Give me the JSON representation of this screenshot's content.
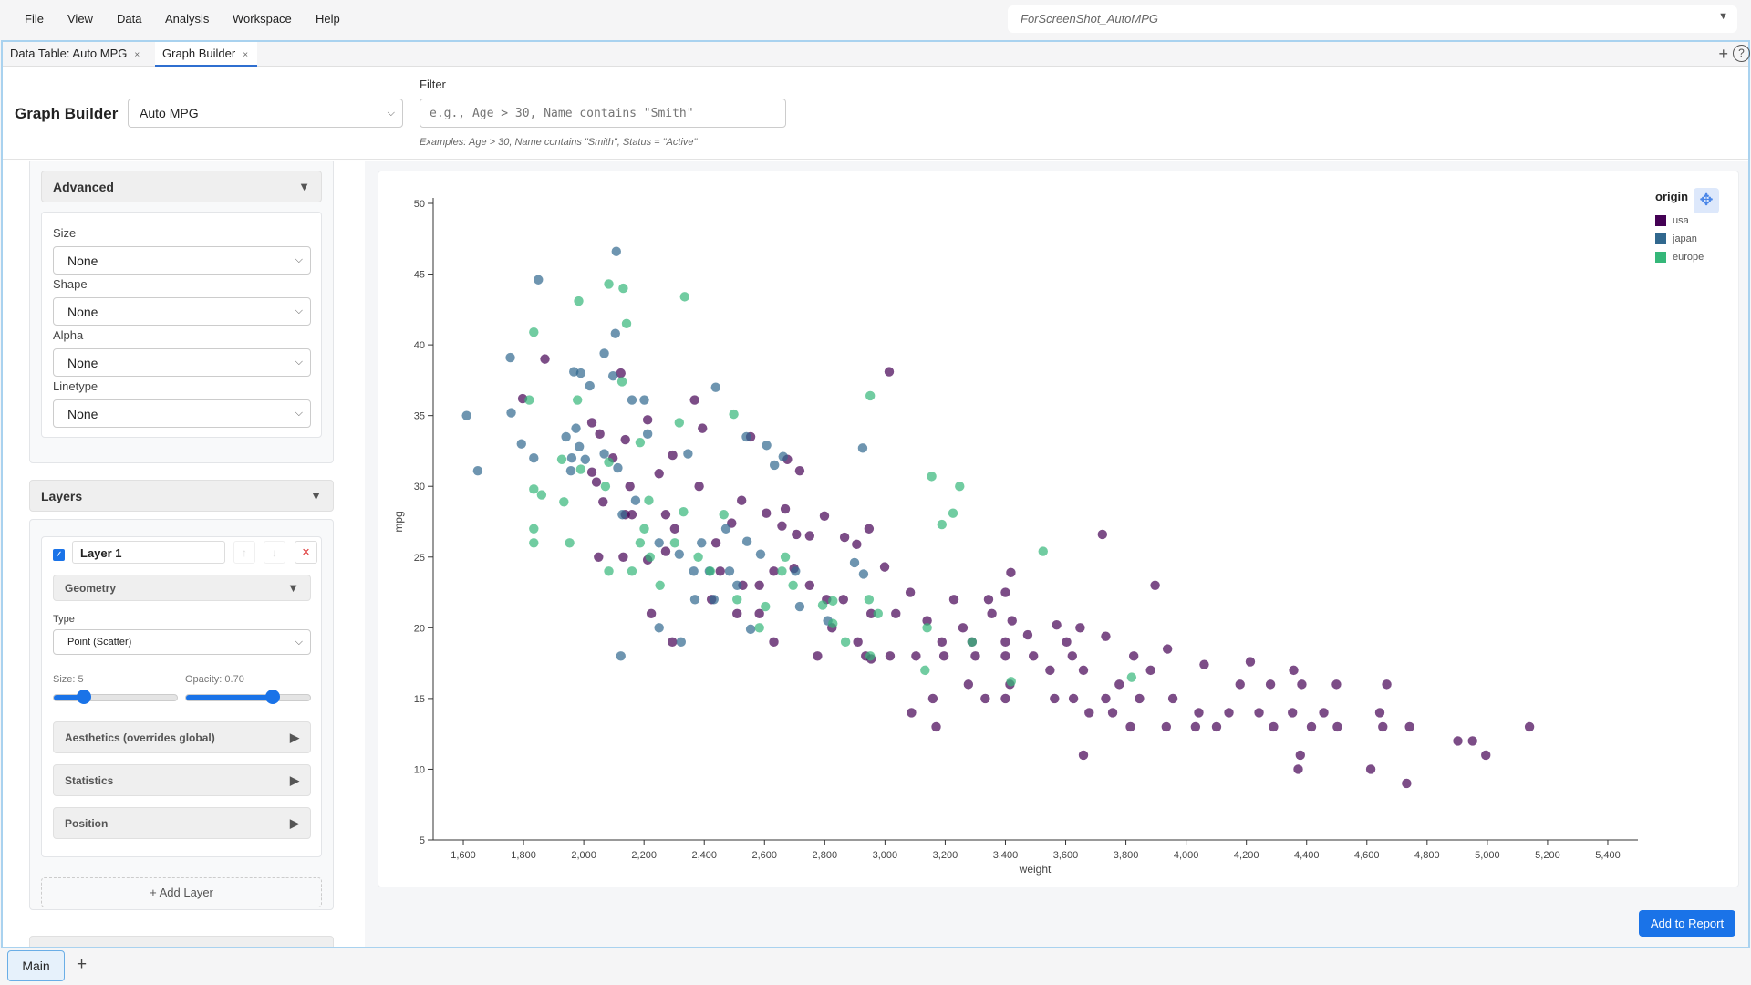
{
  "menu": [
    "File",
    "View",
    "Data",
    "Analysis",
    "Workspace",
    "Help"
  ],
  "workspace_select": "ForScreenShot_AutoMPG",
  "tabs": [
    {
      "label": "Data Table: Auto MPG",
      "close": "×"
    },
    {
      "label": "Graph Builder",
      "close": "×",
      "active": true
    }
  ],
  "header": {
    "title": "Graph Builder",
    "dataset": "Auto MPG",
    "filter_label": "Filter",
    "filter_placeholder": "e.g., Age > 30, Name contains \"Smith\"",
    "filter_hint": "Examples: Age > 30, Name contains \"Smith\", Status = \"Active\""
  },
  "advanced": {
    "title": "Advanced",
    "fields": [
      {
        "label": "Size",
        "value": "None"
      },
      {
        "label": "Shape",
        "value": "None"
      },
      {
        "label": "Alpha",
        "value": "None"
      },
      {
        "label": "Linetype",
        "value": "None"
      }
    ]
  },
  "layers": {
    "title": "Layers",
    "layer": {
      "name": "Layer 1",
      "enabled": true,
      "geometry_title": "Geometry",
      "type_label": "Type",
      "type_value": "Point (Scatter)",
      "size_label": "Size: 5",
      "size_fraction": 0.25,
      "opacity_label": "Opacity: 0.70",
      "opacity_value": 0.7,
      "sections": [
        "Aesthetics (overrides global)",
        "Statistics",
        "Position"
      ]
    },
    "add_layer": "+ Add Layer"
  },
  "add_to_report": "Add to Report",
  "bottom_tabs": {
    "main": "Main",
    "add": "+"
  },
  "chart_data": {
    "type": "scatter",
    "xlabel": "weight",
    "ylabel": "mpg",
    "xlim": [
      1500,
      5500
    ],
    "ylim": [
      5,
      50
    ],
    "xticks": [
      1600,
      1800,
      2000,
      2200,
      2400,
      2600,
      2800,
      3000,
      3200,
      3400,
      3600,
      3800,
      4000,
      4200,
      4400,
      4600,
      4800,
      5000,
      5200,
      5400
    ],
    "xtick_labels": [
      "1,600",
      "1,800",
      "2,000",
      "2,200",
      "2,400",
      "2,600",
      "2,800",
      "3,000",
      "3,200",
      "3,400",
      "3,600",
      "3,800",
      "4,000",
      "4,200",
      "4,400",
      "4,600",
      "4,800",
      "5,000",
      "5,200",
      "5,400"
    ],
    "yticks": [
      5,
      10,
      15,
      20,
      25,
      30,
      35,
      40,
      45,
      50
    ],
    "grid": false,
    "opacity": 0.7,
    "legend": {
      "title": "origin",
      "position": "top-right"
    },
    "series": [
      {
        "name": "usa",
        "color": "#440154",
        "points": [
          [
            1871,
            39
          ],
          [
            1797,
            36.2
          ],
          [
            2027,
            34.5
          ],
          [
            2123,
            38
          ],
          [
            3014,
            38.1
          ],
          [
            2368,
            36.1
          ],
          [
            2394,
            34.1
          ],
          [
            2212,
            34.7
          ],
          [
            2153,
            30
          ],
          [
            2383,
            30
          ],
          [
            2717,
            31.1
          ],
          [
            2554,
            33.5
          ],
          [
            2676,
            31.9
          ],
          [
            3722,
            26.6
          ],
          [
            3897,
            23
          ],
          [
            3418,
            23.9
          ],
          [
            3400,
            22.5
          ],
          [
            2947,
            27
          ],
          [
            2524,
            29
          ],
          [
            2606,
            28.1
          ],
          [
            2669,
            28.4
          ],
          [
            2799,
            27.9
          ],
          [
            2866,
            26.4
          ],
          [
            2999,
            24.3
          ],
          [
            3084,
            22.5
          ],
          [
            3229,
            22
          ],
          [
            3344,
            22
          ],
          [
            3422,
            20.5
          ],
          [
            3570,
            20.2
          ],
          [
            3648,
            20
          ],
          [
            3733,
            19.4
          ],
          [
            3938,
            18.5
          ],
          [
            4060,
            17.4
          ],
          [
            4213,
            17.6
          ],
          [
            4179,
            16
          ],
          [
            4280,
            16
          ],
          [
            4384,
            16
          ],
          [
            4499,
            16
          ],
          [
            4666,
            16
          ],
          [
            4357,
            17
          ],
          [
            4042,
            14
          ],
          [
            4142,
            14
          ],
          [
            4242,
            14
          ],
          [
            4353,
            14
          ],
          [
            4457,
            14
          ],
          [
            4643,
            14
          ],
          [
            4101,
            13
          ],
          [
            4290,
            13
          ],
          [
            4416,
            13
          ],
          [
            4502,
            13
          ],
          [
            4653,
            13
          ],
          [
            4742,
            13
          ],
          [
            5140,
            13
          ],
          [
            4902,
            12
          ],
          [
            4951,
            12
          ],
          [
            4995,
            11
          ],
          [
            4379,
            11
          ],
          [
            4372,
            10
          ],
          [
            4613,
            10
          ],
          [
            4732,
            9
          ],
          [
            3659,
            11
          ],
          [
            3170,
            13
          ],
          [
            3088,
            14
          ],
          [
            3159,
            15
          ],
          [
            3333,
            15
          ],
          [
            3400,
            15
          ],
          [
            3563,
            15
          ],
          [
            3678,
            14
          ],
          [
            3756,
            14
          ],
          [
            3815,
            13
          ],
          [
            3934,
            13
          ],
          [
            4031,
            13
          ],
          [
            3626,
            15
          ],
          [
            3733,
            15
          ],
          [
            3845,
            15
          ],
          [
            3956,
            15
          ],
          [
            3277,
            16
          ],
          [
            3415,
            16
          ],
          [
            3548,
            17
          ],
          [
            3778,
            16
          ],
          [
            3659,
            17
          ],
          [
            3882,
            17
          ],
          [
            3103,
            18
          ],
          [
            3196,
            18
          ],
          [
            3300,
            18
          ],
          [
            3400,
            18
          ],
          [
            3493,
            18
          ],
          [
            3622,
            18
          ],
          [
            3826,
            18
          ],
          [
            2776,
            18
          ],
          [
            2936,
            18
          ],
          [
            3017,
            18
          ],
          [
            3189,
            19
          ],
          [
            3289,
            19
          ],
          [
            3400,
            19
          ],
          [
            3603,
            19
          ],
          [
            2910,
            19
          ],
          [
            2824,
            20
          ],
          [
            2954,
            21
          ],
          [
            3036,
            21
          ],
          [
            3140,
            20.5
          ],
          [
            3259,
            20
          ],
          [
            3355,
            21
          ],
          [
            3474,
            19.5
          ],
          [
            2862,
            22
          ],
          [
            2806,
            22
          ],
          [
            2750,
            23
          ],
          [
            2698,
            24.2
          ],
          [
            2631,
            24
          ],
          [
            2583,
            23
          ],
          [
            2528,
            23
          ],
          [
            2453,
            24
          ],
          [
            2424,
            22
          ],
          [
            2224,
            21
          ],
          [
            2294,
            19
          ],
          [
            2631,
            19
          ],
          [
            2509,
            21
          ],
          [
            2583,
            21
          ],
          [
            2049,
            25
          ],
          [
            2131,
            25
          ],
          [
            2212,
            24.8
          ],
          [
            2272,
            25.4
          ],
          [
            2439,
            26
          ],
          [
            2491,
            27.4
          ],
          [
            2658,
            27.2
          ],
          [
            2706,
            26.6
          ],
          [
            2750,
            26.5
          ],
          [
            2906,
            25.9
          ],
          [
            2138,
            28
          ],
          [
            2064,
            28.9
          ],
          [
            2027,
            31
          ],
          [
            2097,
            32
          ],
          [
            2160,
            28
          ],
          [
            2272,
            28
          ],
          [
            2302,
            27
          ],
          [
            2250,
            30.9
          ],
          [
            2053,
            33.7
          ],
          [
            2138,
            33.3
          ],
          [
            2042,
            30.3
          ],
          [
            2295,
            32.2
          ],
          [
            2954,
            17.8
          ]
        ]
      },
      {
        "name": "japan",
        "color": "#31688e",
        "points": [
          [
            2108,
            46.6
          ],
          [
            1849,
            44.6
          ],
          [
            1756,
            39.1
          ],
          [
            1611,
            35
          ],
          [
            1648,
            31.1
          ],
          [
            1759,
            35.2
          ],
          [
            1793,
            33
          ],
          [
            1834,
            32
          ],
          [
            1967,
            38.1
          ],
          [
            1990,
            38
          ],
          [
            2020,
            37.1
          ],
          [
            2068,
            39.4
          ],
          [
            2105,
            40.8
          ],
          [
            2097,
            37.8
          ],
          [
            2160,
            36.1
          ],
          [
            2201,
            36.1
          ],
          [
            2438,
            37
          ],
          [
            1974,
            34.1
          ],
          [
            1941,
            33.5
          ],
          [
            1985,
            32.8
          ],
          [
            1960,
            32
          ],
          [
            2005,
            31.9
          ],
          [
            1957,
            31.1
          ],
          [
            2068,
            32.3
          ],
          [
            2113,
            31.3
          ],
          [
            2172,
            29
          ],
          [
            2128,
            28
          ],
          [
            2212,
            33.7
          ],
          [
            2346,
            32.3
          ],
          [
            2540,
            33.5
          ],
          [
            2607,
            32.9
          ],
          [
            2662,
            32.1
          ],
          [
            2633,
            31.5
          ],
          [
            2926,
            32.7
          ],
          [
            2472,
            27
          ],
          [
            2542,
            26.1
          ],
          [
            2587,
            25.2
          ],
          [
            2250,
            26
          ],
          [
            2317,
            25.2
          ],
          [
            2391,
            26
          ],
          [
            2365,
            24
          ],
          [
            2417,
            24
          ],
          [
            2484,
            24
          ],
          [
            2369,
            22
          ],
          [
            2509,
            23
          ],
          [
            2717,
            21.5
          ],
          [
            2899,
            24.6
          ],
          [
            2929,
            23.8
          ],
          [
            2810,
            20.5
          ],
          [
            2432,
            22
          ],
          [
            2250,
            20
          ],
          [
            2123,
            18
          ],
          [
            2323,
            19
          ],
          [
            2554,
            19.9
          ],
          [
            2703,
            24
          ]
        ]
      },
      {
        "name": "europe",
        "color": "#35b779",
        "points": [
          [
            2083,
            44.3
          ],
          [
            2131,
            44
          ],
          [
            1983,
            43.1
          ],
          [
            2335,
            43.4
          ],
          [
            2142,
            41.5
          ],
          [
            1834,
            40.9
          ],
          [
            2951,
            36.4
          ],
          [
            1819,
            36.1
          ],
          [
            1979,
            36.1
          ],
          [
            2127,
            37.4
          ],
          [
            2498,
            35.1
          ],
          [
            2317,
            34.5
          ],
          [
            2187,
            33.1
          ],
          [
            2083,
            31.7
          ],
          [
            1990,
            31.2
          ],
          [
            1927,
            31.9
          ],
          [
            3155,
            30.7
          ],
          [
            3248,
            30
          ],
          [
            1834,
            29.8
          ],
          [
            1860,
            29.4
          ],
          [
            1934,
            28.9
          ],
          [
            2072,
            30
          ],
          [
            2216,
            29
          ],
          [
            2331,
            28.2
          ],
          [
            2465,
            28
          ],
          [
            2201,
            27
          ],
          [
            1834,
            27
          ],
          [
            1834,
            26
          ],
          [
            1953,
            26
          ],
          [
            2187,
            26
          ],
          [
            2302,
            26
          ],
          [
            2220,
            25
          ],
          [
            2380,
            25
          ],
          [
            2083,
            24
          ],
          [
            2160,
            24
          ],
          [
            2253,
            23
          ],
          [
            2420,
            24
          ],
          [
            2669,
            25
          ],
          [
            2658,
            24
          ],
          [
            2695,
            23
          ],
          [
            2509,
            22
          ],
          [
            2603,
            21.5
          ],
          [
            2793,
            21.6
          ],
          [
            2827,
            21.9
          ],
          [
            2947,
            22
          ],
          [
            2977,
            21
          ],
          [
            2827,
            20.3
          ],
          [
            2869,
            19
          ],
          [
            2951,
            18
          ],
          [
            2583,
            20
          ],
          [
            3140,
            20
          ],
          [
            3189,
            27.3
          ],
          [
            3226,
            28.1
          ],
          [
            3525,
            25.4
          ],
          [
            3289,
            19
          ],
          [
            3133,
            17
          ],
          [
            3419,
            16.2
          ],
          [
            3819,
            16.5
          ]
        ]
      }
    ]
  }
}
